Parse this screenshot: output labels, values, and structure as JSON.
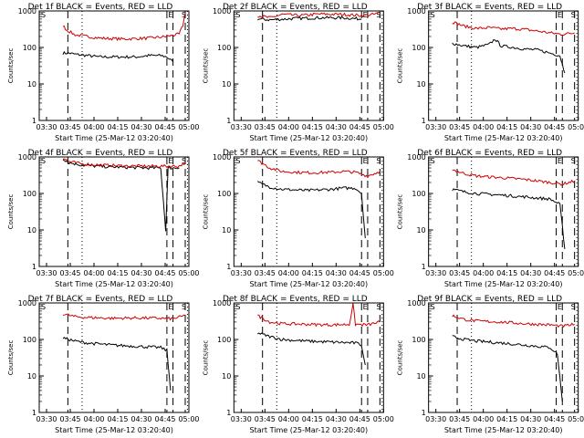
{
  "chart_data": [
    {
      "type": "line",
      "title": "Det 1f BLACK = Events, RED = LLD",
      "xlabel": "Start Time (25-Mar-12 03:20:40)",
      "ylabel": "Counts/sec",
      "yscale": "log",
      "ylim": [
        1,
        1000
      ],
      "xticks": [
        "03:30",
        "03:45",
        "04:00",
        "04:15",
        "04:30",
        "04:45",
        "05:00"
      ],
      "yticks": [
        "1",
        "10",
        "100",
        "1000"
      ],
      "series": [
        {
          "name": "Events",
          "color": "#000000",
          "points": [
            [
              0,
              70
            ],
            [
              0.05,
              70
            ],
            [
              0.1,
              65
            ],
            [
              0.2,
              60
            ],
            [
              0.3,
              55
            ],
            [
              0.4,
              55
            ],
            [
              0.5,
              55
            ],
            [
              0.6,
              55
            ],
            [
              0.7,
              60
            ],
            [
              0.8,
              60
            ],
            [
              0.85,
              55
            ],
            [
              0.9,
              40
            ]
          ]
        },
        {
          "name": "LLD",
          "color": "#d00000",
          "points": [
            [
              0,
              400
            ],
            [
              0.03,
              300
            ],
            [
              0.1,
              220
            ],
            [
              0.3,
              180
            ],
            [
              0.5,
              170
            ],
            [
              0.7,
              180
            ],
            [
              0.85,
              200
            ],
            [
              0.95,
              230
            ],
            [
              0.98,
              400
            ],
            [
              1,
              900
            ]
          ]
        }
      ],
      "markers": {
        "dotted": [
          0.25,
          0.99
        ],
        "dashed": [
          0.04,
          0.85,
          0.9,
          1.0
        ],
        "labels": [
          "S",
          "E",
          "S"
        ]
      }
    },
    {
      "type": "line",
      "title": "Det 2f BLACK = Events, RED = LLD",
      "xlabel": "Start Time (25-Mar-12 03:20:40)",
      "ylabel": "Counts/sec",
      "yscale": "log",
      "ylim": [
        1,
        1000
      ],
      "xticks": [
        "03:30",
        "03:45",
        "04:00",
        "04:15",
        "04:30",
        "04:45",
        "05:00"
      ],
      "yticks": [
        "1",
        "10",
        "100",
        "1000"
      ],
      "series": [
        {
          "name": "Events",
          "color": "#000000",
          "points": [
            [
              0,
              600
            ],
            [
              0.1,
              570
            ],
            [
              0.3,
              620
            ],
            [
              0.5,
              650
            ],
            [
              0.7,
              650
            ],
            [
              0.85,
              600
            ]
          ]
        },
        {
          "name": "LLD",
          "color": "#d00000",
          "points": [
            [
              0,
              750
            ],
            [
              0.05,
              700
            ],
            [
              0.1,
              650
            ],
            [
              0.2,
              800
            ],
            [
              0.35,
              750
            ],
            [
              0.5,
              820
            ],
            [
              0.7,
              800
            ],
            [
              0.85,
              750
            ],
            [
              0.95,
              800
            ],
            [
              1,
              900
            ]
          ]
        }
      ],
      "markers": {
        "dotted": [
          0.25,
          0.99
        ],
        "dashed": [
          0.04,
          0.85,
          0.9,
          1.0
        ],
        "labels": [
          "S",
          "E",
          "S"
        ]
      }
    },
    {
      "type": "line",
      "title": "Det 3f BLACK = Events, RED = LLD",
      "xlabel": "Start Time (25-Mar-12 03:20:40)",
      "ylabel": "Counts/sec",
      "yscale": "log",
      "ylim": [
        1,
        1000
      ],
      "xticks": [
        "03:30",
        "03:45",
        "04:00",
        "04:15",
        "04:30",
        "04:45",
        "05:00"
      ],
      "yticks": [
        "1",
        "10",
        "100",
        "1000"
      ],
      "series": [
        {
          "name": "Events",
          "color": "#000000",
          "points": [
            [
              0,
              130
            ],
            [
              0.1,
              110
            ],
            [
              0.2,
              100
            ],
            [
              0.3,
              120
            ],
            [
              0.35,
              170
            ],
            [
              0.4,
              110
            ],
            [
              0.5,
              100
            ],
            [
              0.6,
              90
            ],
            [
              0.7,
              85
            ],
            [
              0.8,
              70
            ],
            [
              0.88,
              60
            ],
            [
              0.92,
              20
            ]
          ]
        },
        {
          "name": "LLD",
          "color": "#d00000",
          "points": [
            [
              0,
              500
            ],
            [
              0.1,
              380
            ],
            [
              0.2,
              330
            ],
            [
              0.3,
              350
            ],
            [
              0.4,
              320
            ],
            [
              0.5,
              330
            ],
            [
              0.6,
              310
            ],
            [
              0.7,
              280
            ],
            [
              0.8,
              250
            ],
            [
              0.9,
              230
            ],
            [
              1,
              250
            ]
          ]
        }
      ],
      "markers": {
        "dotted": [
          0.25,
          0.99
        ],
        "dashed": [
          0.04,
          0.85,
          0.9,
          1.0
        ],
        "labels": [
          "S",
          "E",
          "S"
        ]
      }
    },
    {
      "type": "line",
      "title": "Det 4f BLACK = Events, RED = LLD",
      "xlabel": "Start Time (25-Mar-12 03:20:40)",
      "ylabel": "Counts/sec",
      "yscale": "log",
      "ylim": [
        1,
        1000
      ],
      "xticks": [
        "03:30",
        "03:45",
        "04:00",
        "04:15",
        "04:30",
        "04:45",
        "05:00"
      ],
      "yticks": [
        "1",
        "10",
        "100",
        "1000"
      ],
      "series": [
        {
          "name": "Events",
          "color": "#000000",
          "points": [
            [
              0,
              900
            ],
            [
              0.05,
              700
            ],
            [
              0.15,
              600
            ],
            [
              0.3,
              550
            ],
            [
              0.5,
              520
            ],
            [
              0.7,
              500
            ],
            [
              0.8,
              500
            ],
            [
              0.84,
              10
            ],
            [
              0.86,
              500
            ],
            [
              0.95,
              500
            ]
          ]
        },
        {
          "name": "LLD",
          "color": "#d00000",
          "points": [
            [
              0,
              950
            ],
            [
              0.05,
              750
            ],
            [
              0.15,
              650
            ],
            [
              0.3,
              600
            ],
            [
              0.5,
              570
            ],
            [
              0.7,
              560
            ],
            [
              0.85,
              560
            ],
            [
              0.95,
              560
            ],
            [
              1,
              700
            ]
          ]
        }
      ],
      "markers": {
        "dotted": [
          0.25,
          0.99
        ],
        "dashed": [
          0.04,
          0.85,
          0.9,
          1.0
        ],
        "labels": [
          "S",
          "E",
          "S"
        ]
      }
    },
    {
      "type": "line",
      "title": "Det 5f BLACK = Events, RED = LLD",
      "xlabel": "Start Time (25-Mar-12 03:20:40)",
      "ylabel": "Counts/sec",
      "yscale": "log",
      "ylim": [
        1,
        1000
      ],
      "xticks": [
        "03:30",
        "03:45",
        "04:00",
        "04:15",
        "04:30",
        "04:45",
        "05:00"
      ],
      "yticks": [
        "1",
        "10",
        "100",
        "1000"
      ],
      "series": [
        {
          "name": "Events",
          "color": "#000000",
          "points": [
            [
              0,
              200
            ],
            [
              0.1,
              150
            ],
            [
              0.2,
              130
            ],
            [
              0.4,
              120
            ],
            [
              0.6,
              130
            ],
            [
              0.7,
              140
            ],
            [
              0.8,
              140
            ],
            [
              0.85,
              100
            ],
            [
              0.88,
              6
            ]
          ]
        },
        {
          "name": "LLD",
          "color": "#d00000",
          "points": [
            [
              0,
              800
            ],
            [
              0.1,
              500
            ],
            [
              0.2,
              400
            ],
            [
              0.4,
              370
            ],
            [
              0.6,
              380
            ],
            [
              0.7,
              400
            ],
            [
              0.8,
              380
            ],
            [
              0.9,
              300
            ],
            [
              1,
              400
            ]
          ]
        }
      ],
      "markers": {
        "dotted": [
          0.25,
          0.99
        ],
        "dashed": [
          0.04,
          0.85,
          0.9,
          1.0
        ],
        "labels": [
          "S",
          "E",
          "S"
        ]
      }
    },
    {
      "type": "line",
      "title": "Det 6f BLACK = Events, RED = LLD",
      "xlabel": "Start Time (25-Mar-12 03:20:40)",
      "ylabel": "Counts/sec",
      "yscale": "log",
      "ylim": [
        1,
        1000
      ],
      "xticks": [
        "03:30",
        "03:45",
        "04:00",
        "04:15",
        "04:30",
        "04:45",
        "05:00"
      ],
      "yticks": [
        "1",
        "10",
        "100",
        "1000"
      ],
      "series": [
        {
          "name": "Events",
          "color": "#000000",
          "points": [
            [
              0,
              130
            ],
            [
              0.1,
              110
            ],
            [
              0.2,
              100
            ],
            [
              0.4,
              90
            ],
            [
              0.6,
              80
            ],
            [
              0.8,
              70
            ],
            [
              0.88,
              50
            ],
            [
              0.92,
              3
            ]
          ]
        },
        {
          "name": "LLD",
          "color": "#d00000",
          "points": [
            [
              0,
              450
            ],
            [
              0.1,
              350
            ],
            [
              0.2,
              300
            ],
            [
              0.4,
              270
            ],
            [
              0.6,
              240
            ],
            [
              0.8,
              200
            ],
            [
              0.9,
              180
            ],
            [
              1,
              220
            ]
          ]
        }
      ],
      "markers": {
        "dotted": [
          0.25,
          0.99
        ],
        "dashed": [
          0.04,
          0.85,
          0.9,
          1.0
        ],
        "labels": [
          "S",
          "E",
          "S"
        ]
      }
    },
    {
      "type": "line",
      "title": "Det 7f BLACK = Events, RED = LLD",
      "xlabel": "Start Time (25-Mar-12 03:20:40)",
      "ylabel": "Counts/sec",
      "yscale": "log",
      "ylim": [
        1,
        1000
      ],
      "xticks": [
        "03:30",
        "03:45",
        "04:00",
        "04:15",
        "04:30",
        "04:45",
        "05:00"
      ],
      "yticks": [
        "1",
        "10",
        "100",
        "1000"
      ],
      "series": [
        {
          "name": "Events",
          "color": "#000000",
          "points": [
            [
              0,
              110
            ],
            [
              0.1,
              90
            ],
            [
              0.2,
              80
            ],
            [
              0.4,
              70
            ],
            [
              0.6,
              65
            ],
            [
              0.8,
              60
            ],
            [
              0.85,
              50
            ],
            [
              0.88,
              4
            ]
          ]
        },
        {
          "name": "LLD",
          "color": "#d00000",
          "points": [
            [
              0,
              500
            ],
            [
              0.1,
              420
            ],
            [
              0.2,
              400
            ],
            [
              0.4,
              380
            ],
            [
              0.6,
              390
            ],
            [
              0.8,
              380
            ],
            [
              0.9,
              370
            ],
            [
              1,
              450
            ]
          ]
        }
      ],
      "markers": {
        "dotted": [
          0.25,
          0.99
        ],
        "dashed": [
          0.04,
          0.85,
          0.9,
          1.0
        ],
        "labels": [
          "S",
          "E",
          "S"
        ]
      }
    },
    {
      "type": "line",
      "title": "Det 8f BLACK = Events, RED = LLD",
      "xlabel": "Start Time (25-Mar-12 03:20:40)",
      "ylabel": "Counts/sec",
      "yscale": "log",
      "ylim": [
        1,
        1000
      ],
      "xticks": [
        "03:30",
        "03:45",
        "04:00",
        "04:15",
        "04:30",
        "04:45",
        "05:00"
      ],
      "yticks": [
        "1",
        "10",
        "100",
        "1000"
      ],
      "series": [
        {
          "name": "Events",
          "color": "#000000",
          "points": [
            [
              0,
              150
            ],
            [
              0.1,
              120
            ],
            [
              0.2,
              100
            ],
            [
              0.4,
              90
            ],
            [
              0.6,
              85
            ],
            [
              0.8,
              80
            ],
            [
              0.85,
              70
            ],
            [
              0.88,
              20
            ]
          ]
        },
        {
          "name": "LLD",
          "color": "#d00000",
          "points": [
            [
              0,
              450
            ],
            [
              0.1,
              300
            ],
            [
              0.2,
              270
            ],
            [
              0.4,
              260
            ],
            [
              0.6,
              250
            ],
            [
              0.75,
              260
            ],
            [
              0.78,
              900
            ],
            [
              0.8,
              260
            ],
            [
              0.9,
              250
            ],
            [
              1,
              300
            ]
          ]
        }
      ],
      "markers": {
        "dotted": [
          0.25,
          0.99
        ],
        "dashed": [
          0.04,
          0.85,
          0.9,
          1.0
        ],
        "labels": [
          "S",
          "E",
          "S"
        ]
      }
    },
    {
      "type": "line",
      "title": "Det 9f BLACK = Events, RED = LLD",
      "xlabel": "Start Time (25-Mar-12 03:20:40)",
      "ylabel": "Counts/sec",
      "yscale": "log",
      "ylim": [
        1,
        1000
      ],
      "xticks": [
        "03:30",
        "03:45",
        "04:00",
        "04:15",
        "04:30",
        "04:45",
        "05:00"
      ],
      "yticks": [
        "1",
        "10",
        "100",
        "1000"
      ],
      "series": [
        {
          "name": "Events",
          "color": "#000000",
          "points": [
            [
              0,
              120
            ],
            [
              0.1,
              100
            ],
            [
              0.2,
              90
            ],
            [
              0.4,
              80
            ],
            [
              0.6,
              70
            ],
            [
              0.8,
              60
            ],
            [
              0.86,
              40
            ],
            [
              0.9,
              2
            ]
          ]
        },
        {
          "name": "LLD",
          "color": "#d00000",
          "points": [
            [
              0,
              450
            ],
            [
              0.1,
              350
            ],
            [
              0.2,
              320
            ],
            [
              0.4,
              300
            ],
            [
              0.6,
              270
            ],
            [
              0.8,
              250
            ],
            [
              0.9,
              230
            ],
            [
              1,
              260
            ]
          ]
        }
      ],
      "markers": {
        "dotted": [
          0.25,
          0.99
        ],
        "dashed": [
          0.04,
          0.85,
          0.9,
          1.0
        ],
        "labels": [
          "S",
          "E",
          "S"
        ]
      }
    }
  ]
}
